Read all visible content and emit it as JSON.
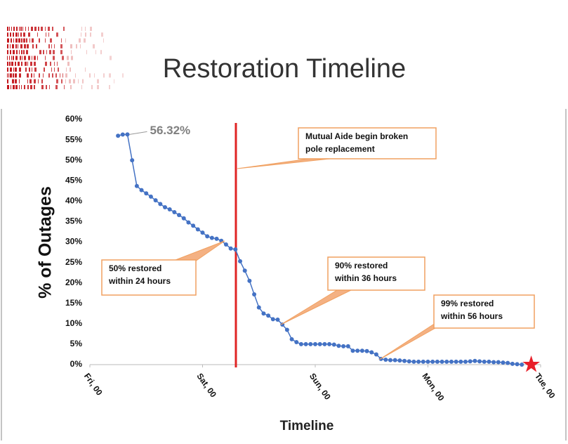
{
  "chart_data": {
    "type": "line",
    "title": "Restoration Timeline",
    "xlabel": "Timeline",
    "ylabel": "% of Outages",
    "x": [
      6,
      7,
      8,
      9,
      10,
      11,
      12,
      13,
      14,
      15,
      16,
      17,
      18,
      19,
      20,
      21,
      22,
      23,
      24,
      25,
      26,
      27,
      28,
      29,
      30,
      31,
      32,
      33,
      34,
      35,
      36,
      37,
      38,
      39,
      40,
      41,
      42,
      43,
      44,
      45,
      46,
      47,
      48,
      49,
      50,
      51,
      52,
      53,
      54,
      55,
      56,
      57,
      58,
      59,
      60,
      61,
      62,
      63,
      64,
      65,
      66,
      67,
      68,
      69,
      70,
      71,
      72,
      73,
      74,
      75,
      76,
      77,
      78,
      79,
      80,
      81,
      82,
      83,
      84,
      85,
      86,
      87,
      88,
      89,
      90,
      91,
      92
    ],
    "series": [
      {
        "color": "#4472c4",
        "values": [
          56.0,
          56.3,
          56.32,
          50,
          43.7,
          42.7,
          41.9,
          41.1,
          40.2,
          39.3,
          38.5,
          38.0,
          37.3,
          36.6,
          35.8,
          34.8,
          34.0,
          33.1,
          32.3,
          31.4,
          31.0,
          30.8,
          30.3,
          29.4,
          28.4,
          28.2,
          25.3,
          23.0,
          20.5,
          17.2,
          14.0,
          12.5,
          12.0,
          11.1,
          11.0,
          9.8,
          8.5,
          6.2,
          5.5,
          5.0,
          5.0,
          5.0,
          5.0,
          5.0,
          5.0,
          5.0,
          4.9,
          4.6,
          4.5,
          4.5,
          3.4,
          3.4,
          3.4,
          3.3,
          3.0,
          2.5,
          1.4,
          1.2,
          1.1,
          1.1,
          1.0,
          0.9,
          0.8,
          0.7,
          0.7,
          0.7,
          0.7,
          0.7,
          0.7,
          0.7,
          0.7,
          0.7,
          0.7,
          0.7,
          0.7,
          0.8,
          0.9,
          0.8,
          0.7,
          0.7,
          0.6,
          0.6,
          0.5,
          0.4,
          0.2,
          0.1,
          0.0
        ],
        "value_labels": [
          null,
          null,
          "56.32%",
          null,
          null,
          null,
          null,
          null,
          null,
          null,
          null,
          null,
          null,
          null,
          null,
          null,
          null,
          null,
          null,
          null,
          null,
          null,
          null,
          null,
          null,
          null,
          null,
          null,
          null,
          null,
          null,
          null,
          null,
          null,
          null,
          null,
          null,
          null,
          null,
          null,
          null,
          null,
          null,
          null,
          null,
          null,
          null,
          null,
          null,
          null,
          null,
          null,
          null,
          null,
          null,
          null,
          null,
          null,
          null,
          null,
          null,
          null,
          null,
          null,
          null,
          null,
          null,
          null,
          null,
          null,
          null,
          null,
          null,
          null,
          null,
          null,
          null,
          null,
          null,
          null,
          null,
          null,
          null,
          null,
          null,
          null,
          null
        ]
      }
    ],
    "xlim": [
      0,
      96
    ],
    "xticks": [
      {
        "value": 0,
        "label": "Fri, 00"
      },
      {
        "value": 24,
        "label": "Sat, 00"
      },
      {
        "value": 48,
        "label": "Sun, 00"
      },
      {
        "value": 72,
        "label": "Mon, 00"
      },
      {
        "value": 96,
        "label": "Tue, 00"
      }
    ],
    "ylim": [
      0,
      60
    ],
    "yticks": [
      {
        "value": 0,
        "label": "0%"
      },
      {
        "value": 5,
        "label": "5%"
      },
      {
        "value": 10,
        "label": "10%"
      },
      {
        "value": 15,
        "label": "15%"
      },
      {
        "value": 20,
        "label": "20%"
      },
      {
        "value": 25,
        "label": "25%"
      },
      {
        "value": 30,
        "label": "30%"
      },
      {
        "value": 35,
        "label": "35%"
      },
      {
        "value": 40,
        "label": "40%"
      },
      {
        "value": 45,
        "label": "45%"
      },
      {
        "value": 50,
        "label": "50%"
      },
      {
        "value": 55,
        "label": "55%"
      },
      {
        "value": 60,
        "label": "60%"
      }
    ],
    "vline": {
      "x": 31.1,
      "color": "#e02424"
    },
    "marker": {
      "x": 94,
      "y": 0,
      "color": "#e8202a"
    },
    "annotations": [
      {
        "text": [
          "Mutual Aide begin broken",
          "pole replacement"
        ]
      },
      {
        "text": [
          "50%  restored",
          "within 24 hours"
        ]
      },
      {
        "text": [
          "90%  restored",
          "within 36 hours"
        ]
      },
      {
        "text": [
          "99% restored",
          "within 56 hours"
        ]
      }
    ]
  }
}
